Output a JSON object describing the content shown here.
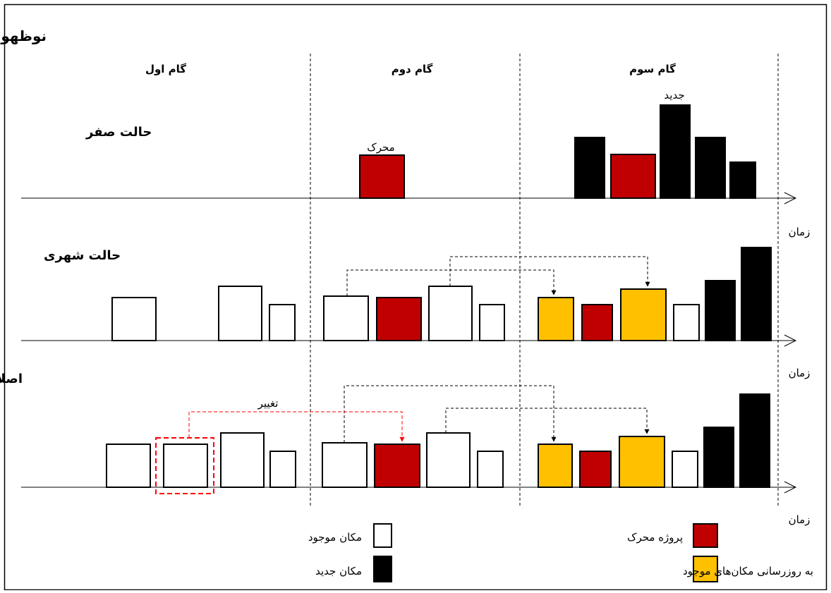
{
  "title": "نوظهور (توسعه جدید)",
  "steps": {
    "step1": "گام اول",
    "step2": "گام دوم",
    "step3": "گام سوم"
  },
  "rows": {
    "zero": "حالت صفر",
    "urban": "حالت شهری",
    "reform": "اصلاح (توسعه مجدد)"
  },
  "annotations": {
    "driver": "محرک",
    "new": "جدید",
    "change": "تغییر"
  },
  "axis_label": "زمان",
  "legend": {
    "existing": "مکان موجود",
    "new_place": "مکان جدید",
    "driver_project": "پروژه محرک",
    "update": "به روزرسانی مکان‌های موجود"
  },
  "colors": {
    "driver": "#C00000",
    "update": "#FFC000",
    "new": "#000000",
    "existing": "#FFFFFF",
    "change": "#FF0000"
  }
}
